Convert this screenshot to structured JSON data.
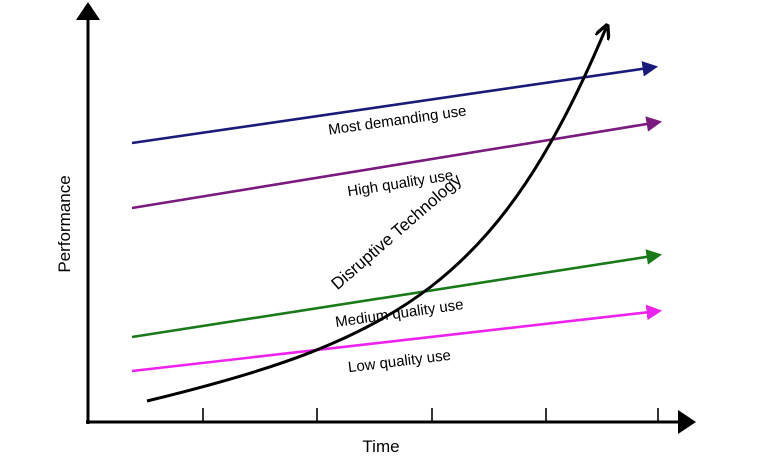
{
  "diagram": {
    "axes": {
      "x_label": "Time",
      "y_label": "Performance",
      "tick_count": 5
    },
    "lines": [
      {
        "id": "most-demanding",
        "label": "Most demanding use",
        "color": "#1a1a7a"
      },
      {
        "id": "high-quality",
        "label": "High quality use",
        "color": "#7a1a7e"
      },
      {
        "id": "medium-quality",
        "label": "Medium quality use",
        "color": "#1a7a1a"
      },
      {
        "id": "low-quality",
        "label": "Low quality use",
        "color": "#ee22ee"
      }
    ],
    "curve": {
      "label": "Disruptive Technology",
      "color": "#000000"
    }
  }
}
